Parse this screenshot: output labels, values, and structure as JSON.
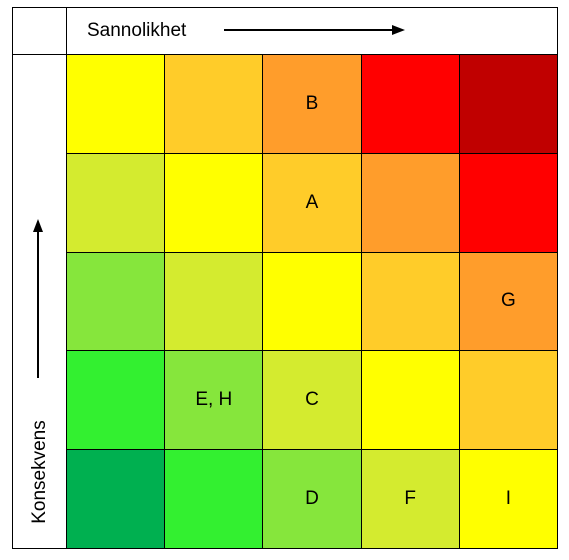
{
  "axes": {
    "x_label": "Sannolikhet",
    "y_label": "Konsekvens"
  },
  "matrix": {
    "rows": [
      [
        {
          "label": "",
          "color": "#FFFF00"
        },
        {
          "label": "",
          "color": "#FFCC29"
        },
        {
          "label": "B",
          "color": "#FF9D2B"
        },
        {
          "label": "",
          "color": "#FF0000"
        },
        {
          "label": "",
          "color": "#C00000"
        }
      ],
      [
        {
          "label": "",
          "color": "#D4EB2F"
        },
        {
          "label": "",
          "color": "#FFFF00"
        },
        {
          "label": "A",
          "color": "#FFCC29"
        },
        {
          "label": "",
          "color": "#FF9D2B"
        },
        {
          "label": "",
          "color": "#FF0000"
        }
      ],
      [
        {
          "label": "",
          "color": "#86E63C"
        },
        {
          "label": "",
          "color": "#D4EB2F"
        },
        {
          "label": "",
          "color": "#FFFF00"
        },
        {
          "label": "",
          "color": "#FFCC29"
        },
        {
          "label": "G",
          "color": "#FF9D2B"
        }
      ],
      [
        {
          "label": "",
          "color": "#33F030"
        },
        {
          "label": "E, H",
          "color": "#86E63C"
        },
        {
          "label": "C",
          "color": "#D4EB2F"
        },
        {
          "label": "",
          "color": "#FFFF00"
        },
        {
          "label": "",
          "color": "#FFCC29"
        }
      ],
      [
        {
          "label": "",
          "color": "#00B050"
        },
        {
          "label": "",
          "color": "#33F030"
        },
        {
          "label": "D",
          "color": "#86E63C"
        },
        {
          "label": "F",
          "color": "#D4EB2F"
        },
        {
          "label": "I",
          "color": "#FFFF00"
        }
      ]
    ]
  }
}
